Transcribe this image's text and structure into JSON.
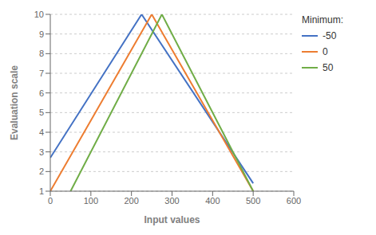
{
  "chart_data": {
    "type": "line",
    "xlabel": "Input values",
    "ylabel": "Evaluation scale",
    "xlim": [
      0,
      600
    ],
    "ylim": [
      1,
      10
    ],
    "xticks": [
      0,
      100,
      200,
      300,
      400,
      500,
      600
    ],
    "yticks": [
      1,
      2,
      3,
      4,
      5,
      6,
      7,
      8,
      9,
      10
    ],
    "legend_title": "Minimum:",
    "legend": "right",
    "grid": "y",
    "series": [
      {
        "name": "-50",
        "color": "#4472C4",
        "x": [
          0,
          225,
          500
        ],
        "values": [
          2.7,
          10,
          1.4
        ]
      },
      {
        "name": "0",
        "color": "#ED7D31",
        "x": [
          0,
          250,
          500
        ],
        "values": [
          1,
          10,
          1
        ]
      },
      {
        "name": "50",
        "color": "#70AD47",
        "x": [
          50,
          275,
          500
        ],
        "values": [
          1,
          10,
          1
        ]
      }
    ]
  }
}
